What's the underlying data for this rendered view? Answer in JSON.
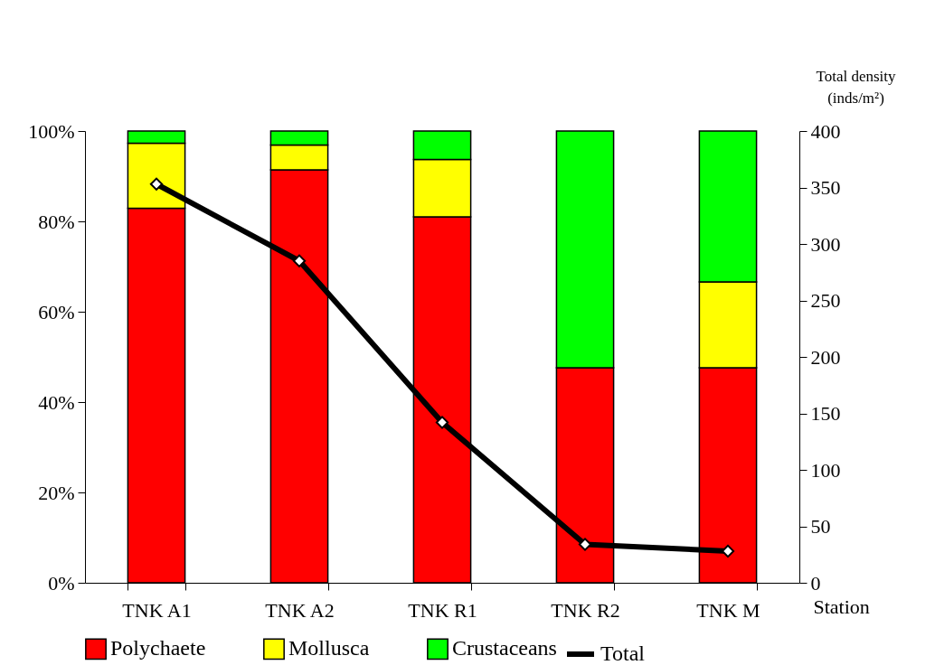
{
  "chart_data": {
    "type": "bar",
    "stacked": true,
    "xlabel": "Station",
    "y2label": "Total density (inds/m²)",
    "categories": [
      "TNK A1",
      "TNK A2",
      "TNK R1",
      "TNK R2",
      "TNK M"
    ],
    "series": [
      {
        "name": "Polychaete",
        "color": "#ff0000",
        "values": [
          82.9,
          91.4,
          81.0,
          47.6,
          47.6
        ]
      },
      {
        "name": "Mollusca",
        "color": "#ffff00",
        "values": [
          14.4,
          5.5,
          12.7,
          0,
          19.0
        ]
      },
      {
        "name": "Crustaceans",
        "color": "#00ff00",
        "values": [
          2.7,
          3.1,
          6.3,
          52.4,
          33.4
        ]
      },
      {
        "name": "Total",
        "type": "line",
        "axis": "y2",
        "color": "#000000",
        "marker": "diamond",
        "values": [
          353,
          285,
          142,
          34,
          28
        ]
      }
    ],
    "ylim": [
      0,
      100
    ],
    "yticks": [
      {
        "value": 0,
        "label": "0%"
      },
      {
        "value": 20,
        "label": "20%"
      },
      {
        "value": 40,
        "label": "40%"
      },
      {
        "value": 60,
        "label": "60%"
      },
      {
        "value": 80,
        "label": "80%"
      },
      {
        "value": 100,
        "label": "100%"
      }
    ],
    "y2lim": [
      0,
      400
    ],
    "y2ticks": [
      0,
      50,
      100,
      150,
      200,
      250,
      300,
      350,
      400
    ],
    "grid": false,
    "legend": "bottom"
  }
}
